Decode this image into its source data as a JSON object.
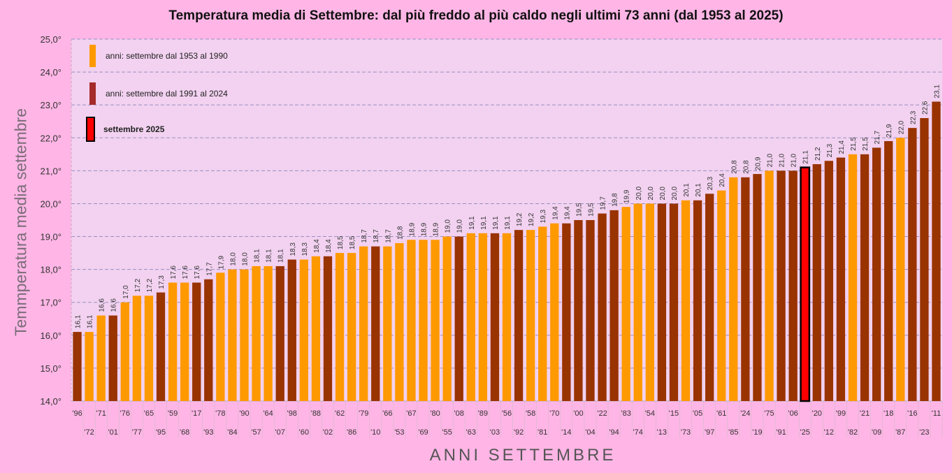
{
  "chart_data": {
    "type": "bar",
    "title": "Temperatura media di Settembre: dal più freddo al più caldo negli ultimi 73 anni   (dal 1953 al 2025)",
    "xlabel": "ANNI   SETTEMBRE",
    "ylabel": "Temmperatura  media  settembre",
    "ylim": [
      14.0,
      25.0
    ],
    "yticks": [
      "14,0°",
      "15,0°",
      "16,0°",
      "17,0°",
      "18,0°",
      "19,0°",
      "20,0°",
      "21,0°",
      "22,0°",
      "23,0°",
      "24,0°",
      "25,0°"
    ],
    "grid": true,
    "legend_position": "top-left",
    "colors": {
      "1953-1990": "#ff9900",
      "1991-2024": "#993300",
      "2025": "#ff0000",
      "2025_border": "#000000"
    },
    "categories": [
      "'96",
      "'72",
      "'71",
      "'01",
      "'76",
      "'77",
      "'65",
      "'95",
      "'59",
      "'68",
      "'17",
      "'93",
      "'78",
      "'84",
      "'90",
      "'57",
      "'64",
      "'07",
      "'98",
      "'60",
      "'88",
      "'02",
      "'62",
      "'86",
      "'79",
      "'10",
      "'66",
      "'53",
      "'67",
      "'69",
      "'80",
      "'55",
      "'08",
      "'63",
      "'89",
      "'03",
      "'56",
      "'92",
      "'58",
      "'81",
      "'70",
      "'14",
      "'00",
      "'04",
      "'22",
      "'94",
      "'83",
      "'74",
      "'54",
      "'13",
      "'15",
      "'73",
      "'05",
      "'97",
      "'61",
      "'85",
      "'24",
      "'19",
      "'75",
      "'91",
      "'06",
      "'25",
      "'20",
      "'12",
      "'99",
      "'82",
      "'21",
      "'09",
      "'18",
      "'87",
      "'16",
      "'23",
      "'11"
    ],
    "values": [
      16.1,
      16.1,
      16.6,
      16.6,
      17.0,
      17.2,
      17.2,
      17.3,
      17.6,
      17.6,
      17.6,
      17.7,
      17.9,
      18.0,
      18.0,
      18.1,
      18.1,
      18.1,
      18.3,
      18.3,
      18.4,
      18.4,
      18.5,
      18.5,
      18.7,
      18.7,
      18.7,
      18.8,
      18.9,
      18.9,
      18.9,
      19.0,
      19.0,
      19.1,
      19.1,
      19.1,
      19.1,
      19.2,
      19.2,
      19.3,
      19.4,
      19.4,
      19.5,
      19.5,
      19.7,
      19.8,
      19.9,
      20.0,
      20.0,
      20.0,
      20.0,
      20.1,
      20.1,
      20.3,
      20.4,
      20.8,
      20.8,
      20.9,
      21.0,
      21.0,
      21.0,
      21.1,
      21.2,
      21.3,
      21.4,
      21.5,
      21.5,
      21.7,
      21.9,
      22.0,
      22.3,
      22.6,
      23.1
    ],
    "value_labels": [
      "16,1",
      "16,1",
      "16,6",
      "16,6",
      "17,0",
      "17,2",
      "17,2",
      "17,3",
      "17,6",
      "17,6",
      "17,6",
      "17,7",
      "17,9",
      "18,0",
      "18,0",
      "18,1",
      "18,1",
      "18,1",
      "18,3",
      "18,3",
      "18,4",
      "18,4",
      "18,5",
      "18,5",
      "18,7",
      "18,7",
      "18,7",
      "18,8",
      "18,9",
      "18,9",
      "18,9",
      "19,0",
      "19,0",
      "19,1",
      "19,1",
      "19,1",
      "19,1",
      "19,2",
      "19,2",
      "19,3",
      "19,4",
      "19,4",
      "19,5",
      "19,5",
      "19,7",
      "19,8",
      "19,9",
      "20,0",
      "20,0",
      "20,0",
      "20,0",
      "20,1",
      "20,1",
      "20,3",
      "20,4",
      "20,8",
      "20,8",
      "20,9",
      "21,0",
      "21,0",
      "21,0",
      "21,1",
      "21,2",
      "21,3",
      "21,4",
      "21,5",
      "21,5",
      "21,7",
      "21,9",
      "22,0",
      "22,3",
      "22,6",
      "23,1"
    ],
    "groups": [
      "1991-2024",
      "1953-1990",
      "1953-1990",
      "1991-2024",
      "1953-1990",
      "1953-1990",
      "1953-1990",
      "1991-2024",
      "1953-1990",
      "1953-1990",
      "1991-2024",
      "1991-2024",
      "1953-1990",
      "1953-1990",
      "1953-1990",
      "1953-1990",
      "1953-1990",
      "1991-2024",
      "1991-2024",
      "1953-1990",
      "1953-1990",
      "1991-2024",
      "1953-1990",
      "1953-1990",
      "1953-1990",
      "1991-2024",
      "1953-1990",
      "1953-1990",
      "1953-1990",
      "1953-1990",
      "1953-1990",
      "1953-1990",
      "1991-2024",
      "1953-1990",
      "1953-1990",
      "1991-2024",
      "1953-1990",
      "1991-2024",
      "1953-1990",
      "1953-1990",
      "1953-1990",
      "1991-2024",
      "1991-2024",
      "1991-2024",
      "1991-2024",
      "1991-2024",
      "1953-1990",
      "1953-1990",
      "1953-1990",
      "1991-2024",
      "1991-2024",
      "1953-1990",
      "1991-2024",
      "1991-2024",
      "1953-1990",
      "1953-1990",
      "1991-2024",
      "1991-2024",
      "1953-1990",
      "1991-2024",
      "1991-2024",
      "2025",
      "1991-2024",
      "1991-2024",
      "1991-2024",
      "1953-1990",
      "1991-2024",
      "1991-2024",
      "1991-2024",
      "1953-1990",
      "1991-2024",
      "1991-2024",
      "1991-2024"
    ]
  },
  "legend": {
    "item_1953_1990": "anni:  settembre  dal 1953 al 1990",
    "item_1991_2024": "anni:  settembre  dal 1991 al 2024",
    "item_2025": "settembre 2025"
  }
}
